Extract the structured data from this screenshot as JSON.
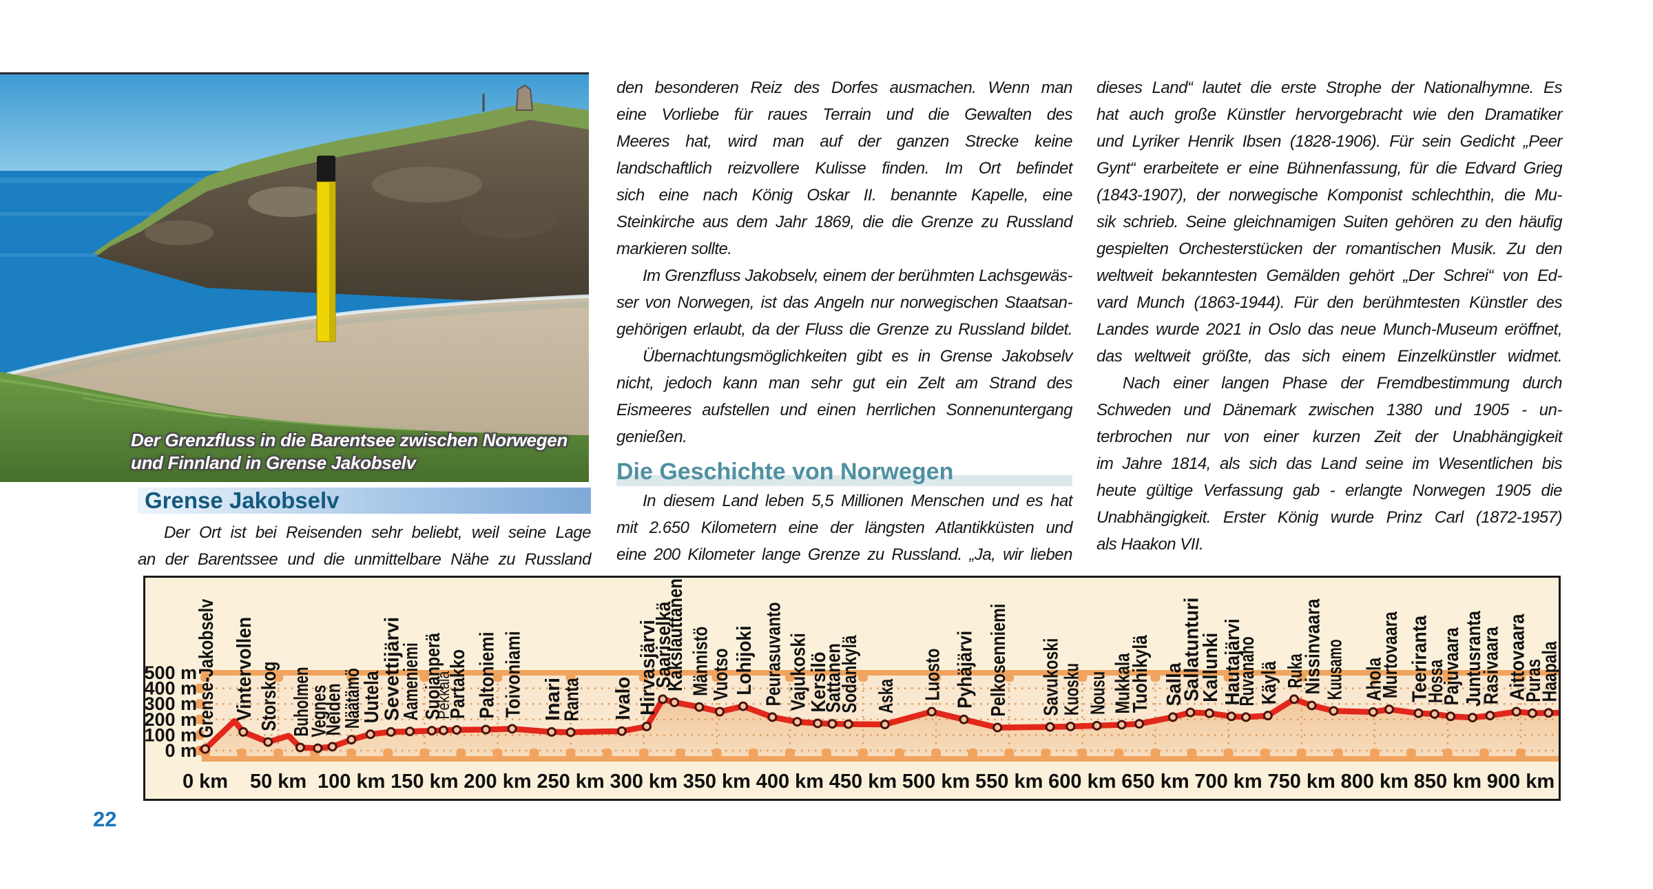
{
  "page": {
    "number": "22"
  },
  "photo": {
    "caption_line1": "Der Grenzfluss in die Barentsee zwischen Norwegen",
    "caption_line2": "und Finnland in Grense Jakobselv"
  },
  "left_column": {
    "heading": "Grense Jakobselv",
    "items": [
      {
        "t": "Der Ort ist bei Reisenden sehr beliebt, weil seine Lage",
        "j": true,
        "ind": true
      },
      {
        "t": "an der Barentssee und die unmittelbare Nähe zu Russland",
        "j": true
      }
    ]
  },
  "middle_column": {
    "items": [
      {
        "t": "den besonderen Reiz des Dorfes ausmachen. Wenn man",
        "j": true
      },
      {
        "t": "eine Vorliebe für raues Terrain und die Gewalten des",
        "j": true
      },
      {
        "t": "Meeres hat, wird man auf der ganzen Strecke keine",
        "j": true
      },
      {
        "t": "landschaftlich reizvollere Kulisse finden. Im Ort befindet",
        "j": true
      },
      {
        "t": "sich eine nach König Oskar II. benannte Kapelle, eine",
        "j": true
      },
      {
        "t": "Steinkirche aus dem Jahr 1869, die die Grenze zu Russland",
        "j": true
      },
      {
        "t": "markieren sollte."
      },
      {
        "t": "Im Grenzfluss Jakobselv, einem der berühmten Lachsgewäs-",
        "j": true,
        "ind": true
      },
      {
        "t": "ser von Norwegen, ist das Angeln nur norwegischen Staatsan-",
        "j": true
      },
      {
        "t": "gehörigen erlaubt, da der Fluss die Grenze zu Russland bildet.",
        "j": true
      },
      {
        "t": "Übernachtungsmöglichkeiten gibt es in Grense Jakobselv",
        "j": true,
        "ind": true
      },
      {
        "t": "nicht, jedoch kann man sehr gut ein Zelt am Strand des",
        "j": true
      },
      {
        "t": "Eismeeres aufstellen und einen herrlichen Sonnenuntergang",
        "j": true
      },
      {
        "t": "genießen."
      },
      {
        "h": "Die Geschichte von Norwegen"
      },
      {
        "t": "In diesem Land leben 5,5 Millionen Menschen und es hat",
        "j": true,
        "ind": true
      },
      {
        "t": "mit 2.650 Kilometern eine der längsten Atlantikküsten und",
        "j": true
      },
      {
        "t": "eine 200 Kilometer lange Grenze zu Russland. „Ja, wir lieben",
        "j": true
      }
    ]
  },
  "right_column": {
    "items": [
      {
        "t": "dieses Land“ lautet die erste Strophe der Nationalhymne. Es",
        "j": true
      },
      {
        "t": "hat auch große Künstler hervorgebracht wie den Dramatiker",
        "j": true
      },
      {
        "t": "und Lyriker Henrik Ibsen (1828-1906). Für sein Gedicht „Peer",
        "j": true
      },
      {
        "t": "Gynt“ erarbeitete er eine Bühnenfassung, für die Edvard Grieg",
        "j": true
      },
      {
        "t": "(1843-1907), der norwegische Komponist schlechthin, die Mu-",
        "j": true
      },
      {
        "t": "sik schrieb. Seine gleichnamigen Suiten gehören zu den häufig",
        "j": true
      },
      {
        "t": "gespielten Orchesterstücken der romantischen Musik. Zu den",
        "j": true
      },
      {
        "t": "weltweit bekanntesten Gemälden gehört „Der Schrei“ von Ed-",
        "j": true
      },
      {
        "t": "vard Munch (1863-1944). Für den berühmtesten Künstler des",
        "j": true
      },
      {
        "t": "Landes wurde 2021 in Oslo das neue Munch-Museum eröffnet,",
        "j": true
      },
      {
        "t": "das weltweit größte, das sich einem Einzelkünstler widmet.",
        "j": true
      },
      {
        "t": "Nach einer langen Phase der Fremdbestimmung durch",
        "j": true,
        "ind": true
      },
      {
        "t": "Schweden und Dänemark zwischen 1380 und 1905 - un-",
        "j": true
      },
      {
        "t": "terbrochen nur von einer kurzen Zeit der Unabhängigkeit",
        "j": true
      },
      {
        "t": "im Jahre 1814, als sich das Land seine im Wesentlichen bis",
        "j": true
      },
      {
        "t": "heute gültige Verfassung gab - erlangte Norwegen 1905 die",
        "j": true
      },
      {
        "t": "Unabhängigkeit. Erster König wurde Prinz Carl (1872-1957)",
        "j": true
      },
      {
        "t": "als Haakon VII."
      }
    ]
  },
  "chart_data": {
    "type": "line",
    "title": "",
    "xlabel": "km",
    "ylabel": "m",
    "x_range_km": [
      0,
      925
    ],
    "y_range_m": [
      0,
      550
    ],
    "x_tick_step_km": 50,
    "y_ticks_m": [
      0,
      100,
      200,
      300,
      400,
      500
    ],
    "y_tick_suffix": " m",
    "x_tick_suffix": " km",
    "grid": "dotted",
    "colors": {
      "background": "#fbf1da",
      "band_light": "#f9e7cf",
      "fill_top": "#f2c89e",
      "fill_bottom": "#f7dcbc",
      "orange_band": "#f0a45f",
      "grid_dot": "#df9c60",
      "line": "#e2271b",
      "marker_fill": "#f2c4a4",
      "marker_stroke": "#46140b",
      "label": "#111111"
    },
    "profile_extra": [
      {
        "km": 20,
        "m": 190
      },
      {
        "km": 57,
        "m": 95
      }
    ],
    "stations": [
      {
        "name": "Grense-Jakobselv",
        "km": 0,
        "m": 10
      },
      {
        "name": "Vintervollen",
        "km": 26,
        "m": 120
      },
      {
        "name": "Storskog",
        "km": 43,
        "m": 55
      },
      {
        "name": "Buholmen",
        "km": 65,
        "m": 20
      },
      {
        "name": "Vegnes",
        "km": 77,
        "m": 15
      },
      {
        "name": "Neiden",
        "km": 87,
        "m": 25
      },
      {
        "name": "Näätämö",
        "km": 100,
        "m": 70
      },
      {
        "name": "Uutela",
        "km": 113,
        "m": 105
      },
      {
        "name": "Sevettijärvi",
        "km": 127,
        "m": 120
      },
      {
        "name": "Aameniemi",
        "km": 140,
        "m": 123
      },
      {
        "name": "Suojanperä",
        "km": 155,
        "m": 128
      },
      {
        "name": "Pekkala",
        "km": 163,
        "m": 130,
        "small": true
      },
      {
        "name": "Partakko",
        "km": 172,
        "m": 133
      },
      {
        "name": "Paltoniemi",
        "km": 192,
        "m": 135
      },
      {
        "name": "Toivoniami",
        "km": 210,
        "m": 140
      },
      {
        "name": "Inari",
        "km": 237,
        "m": 120
      },
      {
        "name": "Ranta",
        "km": 250,
        "m": 118
      },
      {
        "name": "Ivalo",
        "km": 285,
        "m": 125
      },
      {
        "name": "Hirvasjärvi",
        "km": 302,
        "m": 155
      },
      {
        "name": "Saariselkä",
        "km": 313,
        "m": 330
      },
      {
        "name": "Kakslauttanen",
        "km": 321,
        "m": 310
      },
      {
        "name": "Männistö",
        "km": 338,
        "m": 280
      },
      {
        "name": "Vuotso",
        "km": 352,
        "m": 250
      },
      {
        "name": "Lohijoki",
        "km": 368,
        "m": 285
      },
      {
        "name": "Peurasuvanto",
        "km": 388,
        "m": 215
      },
      {
        "name": "Vajukoski",
        "km": 405,
        "m": 185
      },
      {
        "name": "Kersilö",
        "km": 419,
        "m": 175
      },
      {
        "name": "Sattanen",
        "km": 429,
        "m": 172
      },
      {
        "name": "Sodankylä",
        "km": 440,
        "m": 170
      },
      {
        "name": "Aska",
        "km": 465,
        "m": 168
      },
      {
        "name": "Luosto",
        "km": 497,
        "m": 250
      },
      {
        "name": "Pyhäjärvi",
        "km": 519,
        "m": 200
      },
      {
        "name": "Pelkosenniemi",
        "km": 542,
        "m": 148
      },
      {
        "name": "Savukoski",
        "km": 578,
        "m": 152
      },
      {
        "name": "Kuosku",
        "km": 592,
        "m": 155
      },
      {
        "name": "Nousu",
        "km": 610,
        "m": 160
      },
      {
        "name": "Mukkala",
        "km": 627,
        "m": 166
      },
      {
        "name": "Tuohikylä",
        "km": 639,
        "m": 172
      },
      {
        "name": "Salla",
        "km": 662,
        "m": 215
      },
      {
        "name": "Sallatunturi",
        "km": 674,
        "m": 245
      },
      {
        "name": "Kallunki",
        "km": 687,
        "m": 240
      },
      {
        "name": "Hautajärvi",
        "km": 702,
        "m": 220
      },
      {
        "name": "Ruvanaho",
        "km": 712,
        "m": 215
      },
      {
        "name": "Käylä",
        "km": 727,
        "m": 225
      },
      {
        "name": "Ruka",
        "km": 745,
        "m": 330
      },
      {
        "name": "Nissinvaara",
        "km": 757,
        "m": 290
      },
      {
        "name": "Kuusamo",
        "km": 772,
        "m": 255
      },
      {
        "name": "Ahola",
        "km": 799,
        "m": 248
      },
      {
        "name": "Murtovaara",
        "km": 810,
        "m": 265
      },
      {
        "name": "Teeriranta",
        "km": 830,
        "m": 240
      },
      {
        "name": "Hossa",
        "km": 841,
        "m": 235
      },
      {
        "name": "Pajuvaara",
        "km": 852,
        "m": 220
      },
      {
        "name": "Juntusranta",
        "km": 867,
        "m": 212
      },
      {
        "name": "Rasivaara",
        "km": 879,
        "m": 225
      },
      {
        "name": "Aittovaara",
        "km": 897,
        "m": 250
      },
      {
        "name": "Puras",
        "km": 908,
        "m": 240
      },
      {
        "name": "Haapala",
        "km": 919,
        "m": 242
      }
    ]
  }
}
